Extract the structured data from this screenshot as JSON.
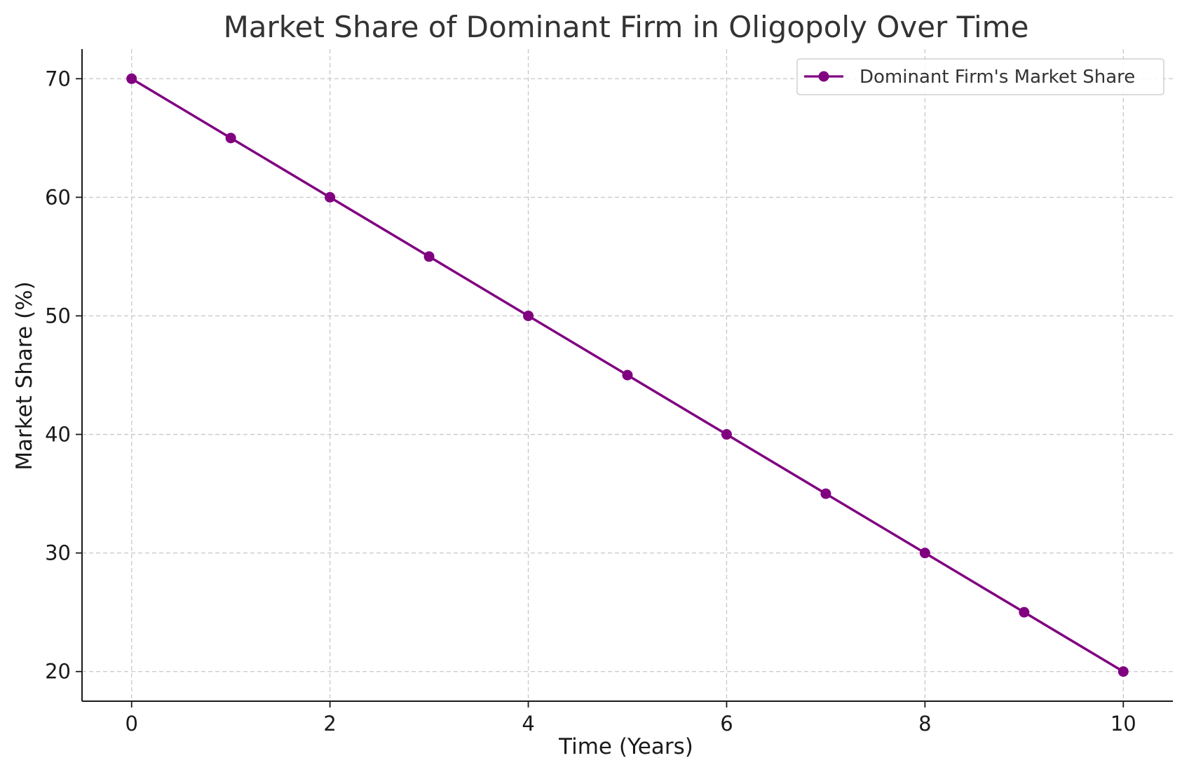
{
  "chart_data": {
    "type": "line",
    "title": "Market Share of Dominant Firm in Oligopoly Over Time",
    "xlabel": "Time (Years)",
    "ylabel": "Market Share (%)",
    "x": [
      0,
      1,
      2,
      3,
      4,
      5,
      6,
      7,
      8,
      9,
      10
    ],
    "series": [
      {
        "name": "Dominant Firm's Market Share",
        "values": [
          70,
          65,
          60,
          55,
          50,
          45,
          40,
          35,
          30,
          25,
          20
        ],
        "color": "#800080",
        "marker": "circle"
      }
    ],
    "xlim": [
      -0.5,
      10.5
    ],
    "ylim": [
      17.5,
      72.5
    ],
    "xticks": [
      0,
      2,
      4,
      6,
      8,
      10
    ],
    "yticks": [
      20,
      30,
      40,
      50,
      60,
      70
    ],
    "grid": true,
    "legend_position": "top-right"
  }
}
